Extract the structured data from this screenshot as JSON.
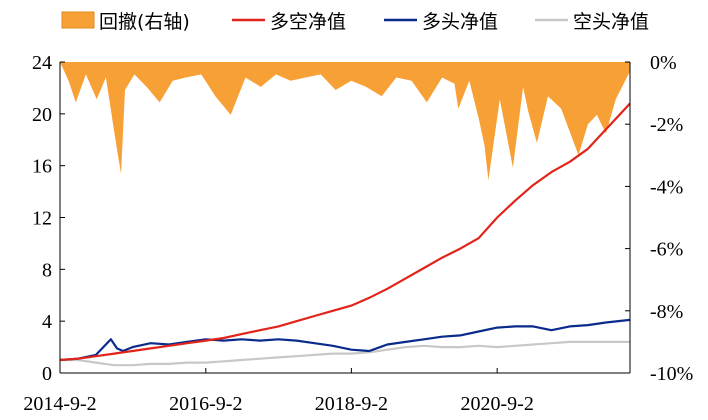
{
  "legend": {
    "drawdown": "回撤(右轴)",
    "long_short": "多空净值",
    "long": "多头净值",
    "short": "空头净值"
  },
  "colors": {
    "drawdown": "#f7a035",
    "long_short": "#e2231a",
    "long": "#0a2a8c",
    "short": "#c8c8c8"
  },
  "chart_data": {
    "type": "line",
    "x_ticks": [
      "2014-9-2",
      "2016-9-2",
      "2018-9-2",
      "2020-9-2"
    ],
    "x_range": [
      "2014-09-02",
      "2022-06-30"
    ],
    "left_axis": {
      "ticks": [
        0,
        4,
        8,
        12,
        16,
        20,
        24
      ],
      "ylim": [
        0,
        24
      ]
    },
    "right_axis": {
      "ticks": [
        "0%",
        "-2%",
        "-4%",
        "-6%",
        "-8%",
        "-10%"
      ],
      "ylim": [
        -10,
        0
      ]
    },
    "series": [
      {
        "name": "多空净值",
        "axis": "left",
        "x": [
          "2014-09-02",
          "2014-12-01",
          "2015-03-01",
          "2015-06-01",
          "2015-09-01",
          "2015-12-01",
          "2016-03-01",
          "2016-06-01",
          "2016-09-02",
          "2016-12-01",
          "2017-03-01",
          "2017-06-01",
          "2017-09-01",
          "2017-12-01",
          "2018-03-01",
          "2018-06-01",
          "2018-09-02",
          "2018-12-01",
          "2019-03-01",
          "2019-06-01",
          "2019-09-01",
          "2019-12-01",
          "2020-03-01",
          "2020-06-01",
          "2020-09-02",
          "2020-12-01",
          "2021-03-01",
          "2021-06-01",
          "2021-09-01",
          "2021-12-01",
          "2022-03-01",
          "2022-06-30"
        ],
        "values": [
          1.0,
          1.1,
          1.3,
          1.5,
          1.7,
          1.9,
          2.1,
          2.3,
          2.5,
          2.7,
          3.0,
          3.3,
          3.6,
          4.0,
          4.4,
          4.8,
          5.2,
          5.8,
          6.5,
          7.3,
          8.1,
          8.9,
          9.6,
          10.4,
          12.0,
          13.3,
          14.5,
          15.5,
          16.3,
          17.3,
          18.8,
          20.8
        ]
      },
      {
        "name": "多头净值",
        "axis": "left",
        "x": [
          "2014-09-02",
          "2014-12-01",
          "2015-03-01",
          "2015-05-15",
          "2015-06-15",
          "2015-07-15",
          "2015-09-01",
          "2015-12-01",
          "2016-03-01",
          "2016-06-01",
          "2016-09-02",
          "2016-12-01",
          "2017-03-01",
          "2017-06-01",
          "2017-09-01",
          "2017-12-01",
          "2018-03-01",
          "2018-06-01",
          "2018-09-02",
          "2018-12-01",
          "2019-03-01",
          "2019-06-01",
          "2019-09-01",
          "2019-12-01",
          "2020-03-01",
          "2020-06-01",
          "2020-09-02",
          "2020-12-01",
          "2021-03-01",
          "2021-06-01",
          "2021-09-01",
          "2021-12-01",
          "2022-03-01",
          "2022-06-30"
        ],
        "values": [
          1.0,
          1.1,
          1.4,
          2.6,
          1.9,
          1.7,
          2.0,
          2.3,
          2.2,
          2.4,
          2.6,
          2.5,
          2.6,
          2.5,
          2.6,
          2.5,
          2.3,
          2.1,
          1.8,
          1.7,
          2.2,
          2.4,
          2.6,
          2.8,
          2.9,
          3.2,
          3.5,
          3.6,
          3.6,
          3.3,
          3.6,
          3.7,
          3.9,
          4.1
        ]
      },
      {
        "name": "空头净值",
        "axis": "left",
        "x": [
          "2014-09-02",
          "2014-12-01",
          "2015-03-01",
          "2015-06-01",
          "2015-09-01",
          "2015-12-01",
          "2016-03-01",
          "2016-06-01",
          "2016-09-02",
          "2016-12-01",
          "2017-03-01",
          "2017-06-01",
          "2017-09-01",
          "2017-12-01",
          "2018-03-01",
          "2018-06-01",
          "2018-09-02",
          "2018-12-01",
          "2019-03-01",
          "2019-06-01",
          "2019-09-01",
          "2019-12-01",
          "2020-03-01",
          "2020-06-01",
          "2020-09-02",
          "2020-12-01",
          "2021-03-01",
          "2021-06-01",
          "2021-09-01",
          "2021-12-01",
          "2022-03-01",
          "2022-06-30"
        ],
        "values": [
          1.0,
          1.0,
          0.8,
          0.6,
          0.6,
          0.7,
          0.7,
          0.8,
          0.8,
          0.9,
          1.0,
          1.1,
          1.2,
          1.3,
          1.4,
          1.5,
          1.5,
          1.6,
          1.8,
          2.0,
          2.1,
          2.0,
          2.0,
          2.1,
          2.0,
          2.1,
          2.2,
          2.3,
          2.4,
          2.4,
          2.4,
          2.4
        ]
      },
      {
        "name": "回撤(右轴)",
        "axis": "right",
        "type": "area",
        "x": [
          "2014-09-02",
          "2014-10-15",
          "2014-11-20",
          "2015-01-10",
          "2015-03-05",
          "2015-04-20",
          "2015-06-05",
          "2015-07-05",
          "2015-07-25",
          "2015-09-10",
          "2015-11-10",
          "2016-01-15",
          "2016-03-20",
          "2016-05-25",
          "2016-08-10",
          "2016-10-20",
          "2017-01-05",
          "2017-03-20",
          "2017-06-05",
          "2017-08-20",
          "2017-11-01",
          "2018-01-15",
          "2018-04-01",
          "2018-06-15",
          "2018-09-01",
          "2018-11-15",
          "2019-02-01",
          "2019-04-15",
          "2019-07-01",
          "2019-09-15",
          "2019-12-01",
          "2020-02-01",
          "2020-02-20",
          "2020-04-15",
          "2020-06-01",
          "2020-07-01",
          "2020-07-20",
          "2020-09-15",
          "2020-11-20",
          "2021-01-10",
          "2021-02-05",
          "2021-03-20",
          "2021-05-15",
          "2021-07-20",
          "2021-09-10",
          "2021-10-15",
          "2021-12-01",
          "2022-01-15",
          "2022-03-01",
          "2022-04-20",
          "2022-06-30"
        ],
        "values": [
          0,
          -0.6,
          -1.3,
          -0.4,
          -1.2,
          -0.5,
          -2.4,
          -3.6,
          -0.9,
          -0.4,
          -0.8,
          -1.3,
          -0.6,
          -0.5,
          -0.4,
          -1.1,
          -1.7,
          -0.5,
          -0.8,
          -0.4,
          -0.6,
          -0.5,
          -0.4,
          -0.9,
          -0.6,
          -0.8,
          -1.1,
          -0.5,
          -0.6,
          -1.3,
          -0.5,
          -0.7,
          -1.5,
          -0.6,
          -1.8,
          -2.7,
          -3.8,
          -1.2,
          -3.4,
          -0.8,
          -1.6,
          -2.6,
          -1.1,
          -1.5,
          -2.4,
          -3.0,
          -2.0,
          -1.7,
          -2.3,
          -1.2,
          -0.3
        ]
      }
    ]
  }
}
